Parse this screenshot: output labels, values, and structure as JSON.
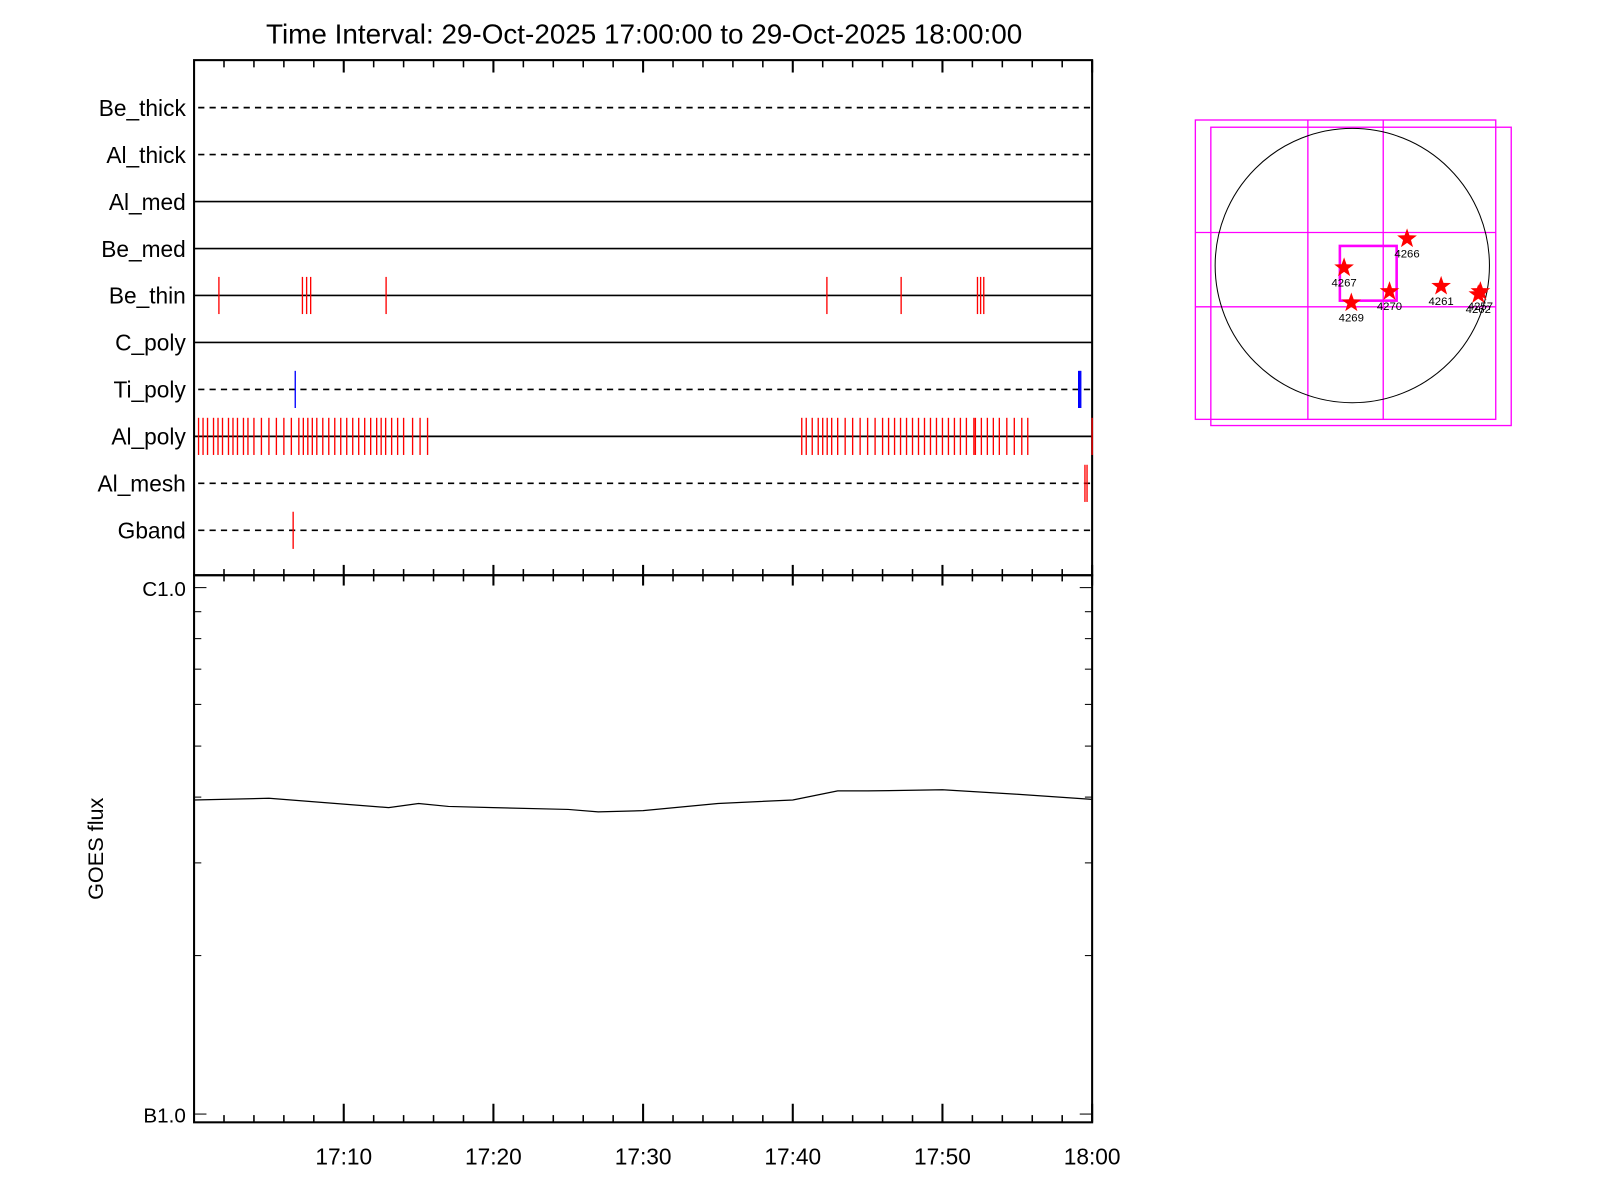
{
  "chart_data": [
    {
      "type": "timeline",
      "title": "Time Interval: 29-Oct-2025 17:00:00 to 29-Oct-2025 18:00:00",
      "xlim": [
        0,
        60
      ],
      "series": [
        {
          "name": "Be_thick",
          "line": "dashed",
          "color": "#ff0000",
          "events": []
        },
        {
          "name": "Al_thick",
          "line": "dashed",
          "color": "#ff0000",
          "events": []
        },
        {
          "name": "Al_med",
          "line": "solid",
          "color": "#ff0000",
          "events": []
        },
        {
          "name": "Be_med",
          "line": "solid",
          "color": "#ff0000",
          "events": []
        },
        {
          "name": "Be_thin",
          "line": "solid",
          "color": "#ff0000",
          "events": [
            1.66,
            7.24,
            7.52,
            7.79,
            12.83,
            42.28,
            47.24,
            52.34,
            52.55,
            52.76
          ]
        },
        {
          "name": "C_poly",
          "line": "solid",
          "color": "#ff0000",
          "events": []
        },
        {
          "name": "Ti_poly",
          "line": "dashed",
          "color": "#0000ff",
          "events": [
            6.76,
            59.1,
            59.17,
            59.24
          ]
        },
        {
          "name": "Al_poly",
          "line": "solid",
          "color": "#ff0000",
          "events": [
            0.3,
            0.6,
            0.9,
            1.3,
            1.6,
            1.9,
            2.3,
            2.6,
            2.9,
            3.3,
            3.6,
            4.0,
            4.5,
            5.0,
            5.5,
            6.0,
            6.5,
            7.0,
            7.3,
            7.6,
            7.9,
            8.2,
            8.6,
            9.0,
            9.4,
            9.8,
            10.2,
            10.6,
            11.0,
            11.4,
            11.8,
            12.2,
            12.5,
            12.8,
            13.2,
            13.6,
            14.0,
            14.6,
            15.1,
            15.6,
            40.6,
            40.9,
            41.3,
            41.7,
            42.0,
            42.3,
            42.6,
            43.0,
            43.5,
            44.0,
            44.5,
            45.0,
            45.5,
            46.0,
            46.4,
            46.8,
            47.2,
            47.6,
            48.0,
            48.4,
            48.8,
            49.2,
            49.6,
            50.0,
            50.4,
            50.8,
            51.2,
            51.6,
            52.1,
            52.2,
            52.6,
            53.0,
            53.4,
            53.8,
            54.3,
            54.8,
            55.3,
            55.7,
            60.0
          ]
        },
        {
          "name": "Al_mesh",
          "line": "dashed",
          "color": "#ff0000",
          "events": [
            59.52,
            59.66
          ]
        },
        {
          "name": "Gband",
          "line": "dashed",
          "color": "#ff0000",
          "events": [
            6.62
          ]
        }
      ]
    },
    {
      "type": "line",
      "ylabel": "GOES flux",
      "log_scale": true,
      "ylim": [
        1e-07,
        1e-06
      ],
      "yticks": [
        {
          "value": 1e-07,
          "label": "B1.0"
        },
        {
          "value": 1e-06,
          "label": "C1.0"
        }
      ],
      "yminorticks": [
        2e-07,
        3e-07,
        4e-07,
        5e-07,
        6e-07,
        7e-07,
        8e-07,
        9e-07
      ],
      "xlim": [
        0,
        60
      ],
      "xticks": [
        {
          "value": 10,
          "label": "17:10"
        },
        {
          "value": 20,
          "label": "17:20"
        },
        {
          "value": 30,
          "label": "17:30"
        },
        {
          "value": 40,
          "label": "17:40"
        },
        {
          "value": 50,
          "label": "17:50"
        },
        {
          "value": 60,
          "label": "18:00"
        }
      ],
      "xminorticks": [
        2,
        4,
        6,
        8,
        12,
        14,
        16,
        18,
        22,
        24,
        26,
        28,
        32,
        34,
        36,
        38,
        42,
        44,
        46,
        48,
        52,
        54,
        56,
        58
      ],
      "x": [
        0,
        5,
        10,
        13,
        15,
        17,
        20,
        25,
        27,
        30,
        35,
        40,
        43,
        45,
        50,
        55,
        60
      ],
      "series": [
        {
          "color": "#000000",
          "values": [
            3.95e-07,
            3.98e-07,
            3.88e-07,
            3.82e-07,
            3.89e-07,
            3.84e-07,
            3.82e-07,
            3.79e-07,
            3.75e-07,
            3.77e-07,
            3.89e-07,
            3.95e-07,
            4.11e-07,
            4.11e-07,
            4.13e-07,
            4.05e-07,
            3.96e-07
          ]
        }
      ]
    },
    {
      "type": "map",
      "xlim": [
        -1110,
        1124
      ],
      "ylim": [
        -1131,
        1029
      ],
      "radius": 970,
      "color": "#ff0000",
      "regions": [
        {
          "label": "4266",
          "x": 387,
          "y": 190
        },
        {
          "label": "4267",
          "x": -58,
          "y": -15
        },
        {
          "label": "4269",
          "x": -7,
          "y": -263
        },
        {
          "label": "4270",
          "x": 263,
          "y": -183
        },
        {
          "label": "4261",
          "x": 628,
          "y": -146
        },
        {
          "label": "4257",
          "x": 906,
          "y": -183
        },
        {
          "label": "4262",
          "x": 891,
          "y": -205
        }
      ]
    }
  ]
}
